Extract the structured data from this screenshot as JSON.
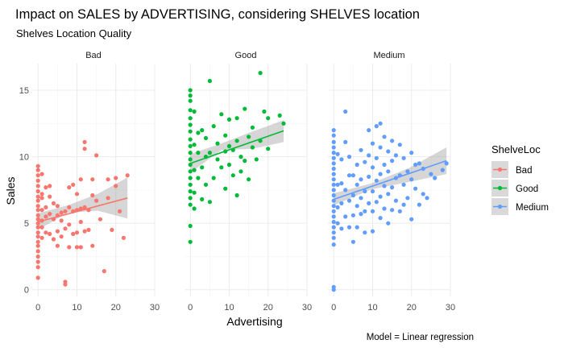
{
  "chart_data": {
    "type": "scatter",
    "title": "Impact on SALES by ADVERTISING, considering SHELVES location",
    "subtitle": "Shelves Location Quality",
    "xlabel": "Advertising",
    "ylabel": "Sales",
    "caption": "Model = Linear regression",
    "xlim": [
      -1.5,
      30
    ],
    "ylim": [
      -0.5,
      17
    ],
    "x_ticks": [
      0,
      10,
      20,
      30
    ],
    "y_ticks": [
      0,
      5,
      10,
      15
    ],
    "grid": true,
    "legend": {
      "title": "ShelveLoc",
      "position": "right",
      "entries": [
        "Bad",
        "Good",
        "Medium"
      ]
    },
    "facets": [
      {
        "name": "Bad",
        "color": "#F8766D",
        "fit": {
          "x0": 0,
          "x1": 23,
          "y0": 5.1,
          "y1": 6.9,
          "band_low": [
            4.5,
            5.8,
            5.95,
            5.35
          ],
          "band_high": [
            5.75,
            6.35,
            7.2,
            8.45
          ]
        },
        "points": [
          [
            0,
            9.3
          ],
          [
            0,
            9.0
          ],
          [
            0,
            8.6
          ],
          [
            0,
            8.2
          ],
          [
            0,
            7.8
          ],
          [
            0,
            7.4
          ],
          [
            0,
            7.0
          ],
          [
            0,
            6.7
          ],
          [
            0,
            6.3
          ],
          [
            0,
            6.0
          ],
          [
            0,
            5.6
          ],
          [
            0,
            5.3
          ],
          [
            0,
            5.0
          ],
          [
            0,
            4.7
          ],
          [
            0,
            4.3
          ],
          [
            0,
            4.0
          ],
          [
            0,
            3.6
          ],
          [
            0,
            3.3
          ],
          [
            0,
            2.9
          ],
          [
            0,
            2.5
          ],
          [
            0,
            2.1
          ],
          [
            0,
            1.7
          ],
          [
            0,
            0.9
          ],
          [
            1,
            8.7
          ],
          [
            1,
            7.2
          ],
          [
            1,
            6.9
          ],
          [
            1,
            6.0
          ],
          [
            1,
            5.2
          ],
          [
            1,
            4.7
          ],
          [
            1,
            3.9
          ],
          [
            2,
            7.7
          ],
          [
            2,
            6.2
          ],
          [
            2,
            5.5
          ],
          [
            2,
            4.3
          ],
          [
            3,
            7.8
          ],
          [
            3,
            7.0
          ],
          [
            3,
            5.7
          ],
          [
            3,
            4.2
          ],
          [
            4,
            6.5
          ],
          [
            4,
            5.3
          ],
          [
            4,
            3.8
          ],
          [
            5,
            6.3
          ],
          [
            5,
            5.6
          ],
          [
            5,
            4.4
          ],
          [
            5,
            3.3
          ],
          [
            6,
            5.8
          ],
          [
            6,
            5.2
          ],
          [
            6,
            4.0
          ],
          [
            7,
            5.9
          ],
          [
            7,
            4.6
          ],
          [
            7,
            0.6
          ],
          [
            7,
            0.4
          ],
          [
            8,
            7.7
          ],
          [
            8,
            6.2
          ],
          [
            8,
            4.9
          ],
          [
            8,
            3.2
          ],
          [
            9,
            7.9
          ],
          [
            9,
            5.9
          ],
          [
            9,
            4.2
          ],
          [
            10,
            7.2
          ],
          [
            10,
            6.0
          ],
          [
            10,
            4.3
          ],
          [
            10,
            3.2
          ],
          [
            11,
            8.3
          ],
          [
            11,
            6.1
          ],
          [
            11,
            5.1
          ],
          [
            11,
            3.2
          ],
          [
            12,
            11.1
          ],
          [
            12,
            10.6
          ],
          [
            12,
            6.2
          ],
          [
            12,
            4.4
          ],
          [
            13,
            6.0
          ],
          [
            13,
            4.5
          ],
          [
            14,
            8.3
          ],
          [
            14,
            7.1
          ],
          [
            14,
            3.3
          ],
          [
            15,
            10.1
          ],
          [
            15,
            6.7
          ],
          [
            16,
            5.3
          ],
          [
            17,
            1.4
          ],
          [
            18,
            8.3
          ],
          [
            18,
            6.9
          ],
          [
            19,
            4.5
          ],
          [
            20,
            7.8
          ],
          [
            20,
            8.4
          ],
          [
            21,
            5.9
          ],
          [
            22,
            3.9
          ],
          [
            23,
            8.6
          ]
        ]
      },
      {
        "name": "Good",
        "color": "#00BA38",
        "fit": {
          "x0": 0,
          "x1": 24,
          "y0": 9.5,
          "y1": 11.95,
          "band_low": [
            8.8,
            10.5,
            10.6,
            11.1
          ],
          "band_high": [
            10.2,
            11.0,
            11.9,
            12.75
          ]
        },
        "points": [
          [
            0,
            15.0
          ],
          [
            0,
            14.6
          ],
          [
            0,
            14.2
          ],
          [
            0,
            13.5
          ],
          [
            0,
            12.9
          ],
          [
            0,
            12.4
          ],
          [
            0,
            11.9
          ],
          [
            0,
            11.3
          ],
          [
            0,
            10.8
          ],
          [
            0,
            10.3
          ],
          [
            0,
            9.8
          ],
          [
            0,
            9.4
          ],
          [
            0,
            8.9
          ],
          [
            0,
            8.4
          ],
          [
            0,
            7.9
          ],
          [
            0,
            7.4
          ],
          [
            0,
            6.9
          ],
          [
            0,
            6.4
          ],
          [
            0,
            4.8
          ],
          [
            0,
            3.6
          ],
          [
            1,
            13.4
          ],
          [
            1,
            10.9
          ],
          [
            1,
            9.0
          ],
          [
            1,
            7.3
          ],
          [
            1,
            6.1
          ],
          [
            2,
            11.8
          ],
          [
            2,
            10.3
          ],
          [
            2,
            8.4
          ],
          [
            3,
            12.0
          ],
          [
            3,
            9.2
          ],
          [
            3,
            6.8
          ],
          [
            4,
            11.4
          ],
          [
            4,
            10.0
          ],
          [
            4,
            7.9
          ],
          [
            5,
            15.7
          ],
          [
            5,
            10.3
          ],
          [
            5,
            6.6
          ],
          [
            6,
            12.3
          ],
          [
            6,
            8.4
          ],
          [
            7,
            11.0
          ],
          [
            7,
            9.8
          ],
          [
            8,
            13.2
          ],
          [
            8,
            9.2
          ],
          [
            9,
            11.6
          ],
          [
            9,
            10.4
          ],
          [
            9,
            7.6
          ],
          [
            10,
            12.8
          ],
          [
            10,
            10.8
          ],
          [
            10,
            9.4
          ],
          [
            11,
            10.5
          ],
          [
            11,
            8.6
          ],
          [
            12,
            12.9
          ],
          [
            12,
            11.2
          ],
          [
            12,
            7.1
          ],
          [
            13,
            10.0
          ],
          [
            13,
            8.9
          ],
          [
            14,
            13.6
          ],
          [
            14,
            9.7
          ],
          [
            15,
            11.5
          ],
          [
            15,
            8.3
          ],
          [
            16,
            12.2
          ],
          [
            16,
            10.7
          ],
          [
            17,
            9.8
          ],
          [
            18,
            16.3
          ],
          [
            18,
            11.2
          ],
          [
            19,
            13.4
          ],
          [
            20,
            12.9
          ],
          [
            20,
            10.6
          ],
          [
            23,
            13.1
          ],
          [
            24,
            12.5
          ]
        ]
      },
      {
        "name": "Medium",
        "color": "#619CFF",
        "fit": {
          "x0": 0,
          "x1": 29,
          "y0": 6.8,
          "y1": 9.7,
          "band_low": [
            6.35,
            7.55,
            8.1,
            8.7
          ],
          "band_high": [
            7.25,
            8.0,
            9.15,
            10.7
          ]
        },
        "points": [
          [
            0,
            12.0
          ],
          [
            0,
            11.6
          ],
          [
            0,
            11.1
          ],
          [
            0,
            10.7
          ],
          [
            0,
            10.3
          ],
          [
            0,
            9.9
          ],
          [
            0,
            9.5
          ],
          [
            0,
            9.1
          ],
          [
            0,
            8.7
          ],
          [
            0,
            8.3
          ],
          [
            0,
            7.9
          ],
          [
            0,
            7.5
          ],
          [
            0,
            7.1
          ],
          [
            0,
            6.7
          ],
          [
            0,
            6.3
          ],
          [
            0,
            5.9
          ],
          [
            0,
            5.5
          ],
          [
            0,
            5.1
          ],
          [
            0,
            4.7
          ],
          [
            0,
            4.3
          ],
          [
            0,
            3.9
          ],
          [
            0,
            3.4
          ],
          [
            0,
            0.2
          ],
          [
            0,
            0.0
          ],
          [
            1,
            10.2
          ],
          [
            1,
            7.9
          ],
          [
            1,
            6.2
          ],
          [
            1,
            5.0
          ],
          [
            2,
            9.8
          ],
          [
            2,
            8.0
          ],
          [
            2,
            6.5
          ],
          [
            2,
            4.6
          ],
          [
            3,
            11.1
          ],
          [
            3,
            7.5
          ],
          [
            3,
            5.5
          ],
          [
            4,
            10.0
          ],
          [
            4,
            8.6
          ],
          [
            4,
            6.7
          ],
          [
            4,
            4.7
          ],
          [
            5,
            8.6
          ],
          [
            5,
            7.1
          ],
          [
            5,
            5.6
          ],
          [
            5,
            3.6
          ],
          [
            6,
            9.4
          ],
          [
            6,
            7.9
          ],
          [
            6,
            6.3
          ],
          [
            6,
            4.7
          ],
          [
            7,
            10.5
          ],
          [
            7,
            8.3
          ],
          [
            7,
            6.9
          ],
          [
            7,
            5.7
          ],
          [
            8,
            9.6
          ],
          [
            8,
            7.4
          ],
          [
            8,
            5.9
          ],
          [
            8,
            4.3
          ],
          [
            9,
            12.0
          ],
          [
            9,
            10.1
          ],
          [
            9,
            8.5
          ],
          [
            9,
            6.5
          ],
          [
            10,
            11.0
          ],
          [
            10,
            9.2
          ],
          [
            10,
            7.4
          ],
          [
            10,
            5.9
          ],
          [
            10,
            4.4
          ],
          [
            11,
            12.3
          ],
          [
            11,
            9.9
          ],
          [
            11,
            8.2
          ],
          [
            11,
            6.6
          ],
          [
            12,
            12.5
          ],
          [
            12,
            10.7
          ],
          [
            12,
            8.7
          ],
          [
            12,
            7.0
          ],
          [
            12,
            5.4
          ],
          [
            13,
            11.5
          ],
          [
            13,
            9.4
          ],
          [
            13,
            7.8
          ],
          [
            13,
            6.1
          ],
          [
            14,
            10.4
          ],
          [
            14,
            8.9
          ],
          [
            14,
            7.2
          ],
          [
            14,
            5.0
          ],
          [
            15,
            11.2
          ],
          [
            15,
            9.7
          ],
          [
            15,
            7.7
          ],
          [
            15,
            6.0
          ],
          [
            16,
            10.1
          ],
          [
            16,
            8.4
          ],
          [
            16,
            6.7
          ],
          [
            17,
            10.9
          ],
          [
            17,
            8.6
          ],
          [
            17,
            5.9
          ],
          [
            18,
            9.9
          ],
          [
            18,
            7.9
          ],
          [
            18,
            6.4
          ],
          [
            19,
            8.9
          ],
          [
            19,
            6.9
          ],
          [
            20,
            10.3
          ],
          [
            20,
            8.3
          ],
          [
            20,
            5.3
          ],
          [
            21,
            9.4
          ],
          [
            21,
            7.6
          ],
          [
            22,
            9.5
          ],
          [
            22,
            6.4
          ],
          [
            23,
            9.1
          ],
          [
            23,
            7.2
          ],
          [
            24,
            6.9
          ],
          [
            25,
            8.7
          ],
          [
            26,
            8.4
          ],
          [
            28,
            9.0
          ],
          [
            29,
            9.5
          ],
          [
            3,
            13.4
          ]
        ]
      }
    ]
  }
}
